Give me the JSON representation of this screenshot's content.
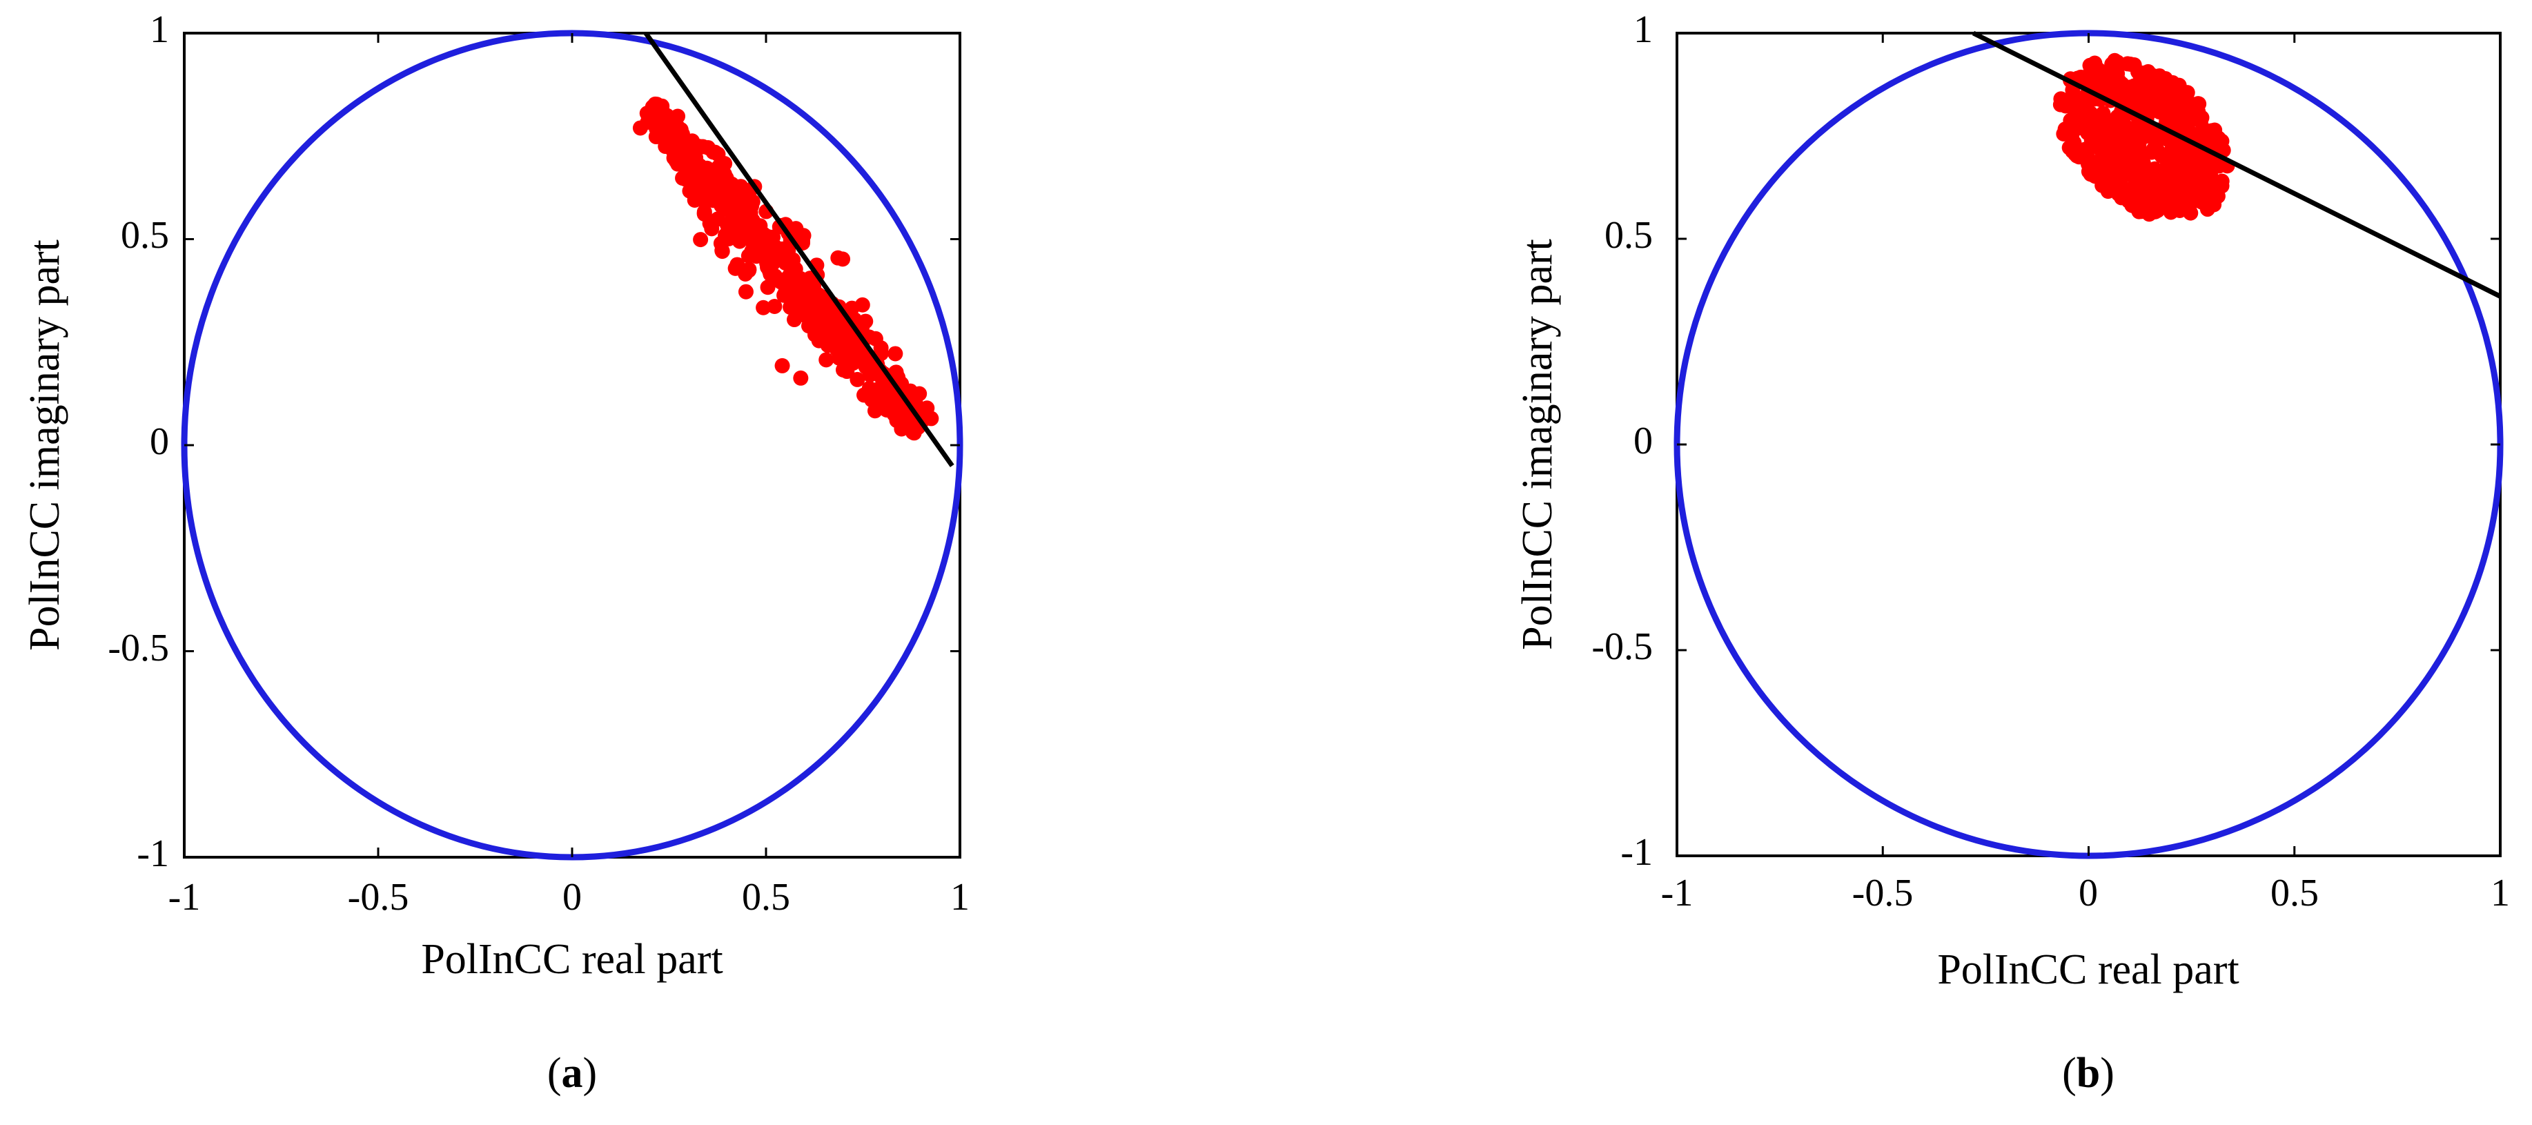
{
  "chart_data": [
    {
      "type": "scatter",
      "panel_label": "a",
      "xlabel": "PolInCC real part",
      "ylabel": "PolInCC imaginary part",
      "xlim": [
        -1,
        1
      ],
      "ylim": [
        -1,
        1
      ],
      "x_ticks": [
        "-1",
        "-0.5",
        "0",
        "0.5",
        "1"
      ],
      "y_ticks": [
        "1",
        "0.5",
        "0",
        "-0.5",
        "-1"
      ],
      "grid": false,
      "colors": {
        "circle": "#1f1fdd",
        "points": "#ff0000",
        "line": "#000000"
      },
      "unit_circle": {
        "radius": 1
      },
      "line": {
        "x": [
          0.19,
          0.98
        ],
        "y": [
          1.0,
          -0.05
        ]
      },
      "cluster": {
        "center": [
          0.6,
          0.39
        ],
        "extent_points": [
          [
            0.2,
            0.82
          ],
          [
            0.9,
            0.04
          ]
        ],
        "half_width": 0.085,
        "count": 450
      }
    },
    {
      "type": "scatter",
      "panel_label": "b",
      "xlabel": "PolInCC real part",
      "ylabel": "PolInCC imaginary part",
      "xlim": [
        -1,
        1
      ],
      "ylim": [
        -1,
        1
      ],
      "x_ticks": [
        "-1",
        "-0.5",
        "0",
        "0.5",
        "1"
      ],
      "y_ticks": [
        "1",
        "0.5",
        "0",
        "-0.5",
        "-1"
      ],
      "grid": false,
      "colors": {
        "circle": "#1f1fdd",
        "points": "#ff0000",
        "line": "#000000"
      },
      "unit_circle": {
        "radius": 1
      },
      "line": {
        "x": [
          -0.28,
          1.0
        ],
        "y": [
          1.0,
          0.36
        ]
      },
      "cluster": {
        "center": [
          0.13,
          0.75
        ],
        "x_range": [
          -0.07,
          0.34
        ],
        "y_range": [
          0.56,
          0.92
        ],
        "count": 450
      }
    }
  ]
}
